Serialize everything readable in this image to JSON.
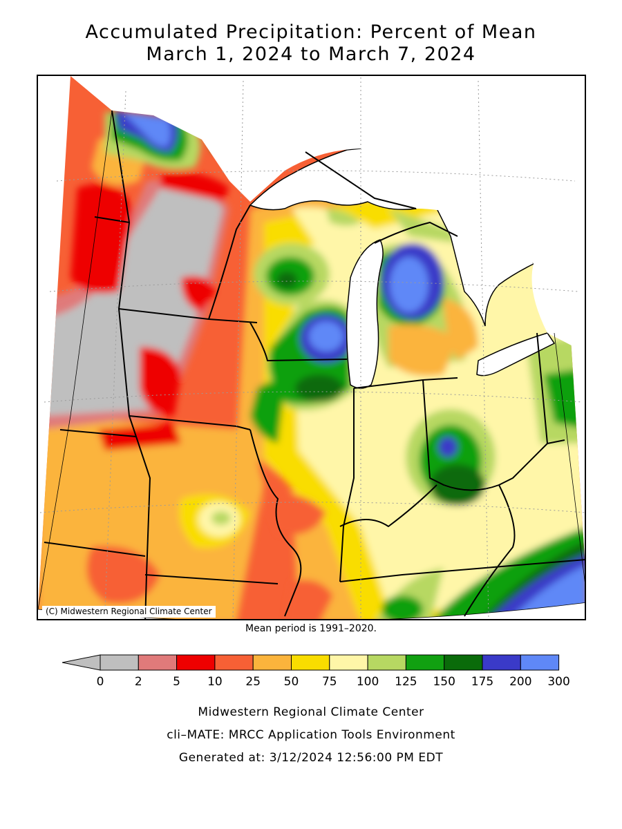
{
  "title": {
    "line1": "Accumulated Precipitation: Percent of Mean",
    "line2": "March 1, 2024 to March 7, 2024"
  },
  "map": {
    "copyright": "(C) Midwestern Regional Climate Center",
    "colors": {
      "gray": "#bfbfbf",
      "pink": "#e07a7a",
      "red": "#ee0000",
      "orange_red": "#f76035",
      "orange": "#fbb43c",
      "yellow": "#f9dd00",
      "light_yellow": "#fff6a8",
      "light_green": "#b7d862",
      "green": "#11a011",
      "dark_green": "#0a6b0a",
      "dark_blue": "#3a3ac8",
      "blue": "#5f88f7",
      "lake": "#ffffff"
    }
  },
  "mean_period": "Mean period is 1991–2020.",
  "legend": {
    "ticks": [
      "0",
      "2",
      "5",
      "10",
      "25",
      "50",
      "75",
      "100",
      "125",
      "150",
      "175",
      "200",
      "300"
    ],
    "colors": [
      "#bfbfbf",
      "#e07a7a",
      "#ee0000",
      "#f76035",
      "#fbb43c",
      "#f9dd00",
      "#fff6a8",
      "#b7d862",
      "#11a011",
      "#0a6b0a",
      "#3a3ac8",
      "#5f88f7"
    ]
  },
  "footer": {
    "line1": "Midwestern Regional Climate Center",
    "line2": "cli–MATE: MRCC Application Tools Environment",
    "line3": "Generated at: 3/12/2024 12:56:00 PM EDT"
  }
}
